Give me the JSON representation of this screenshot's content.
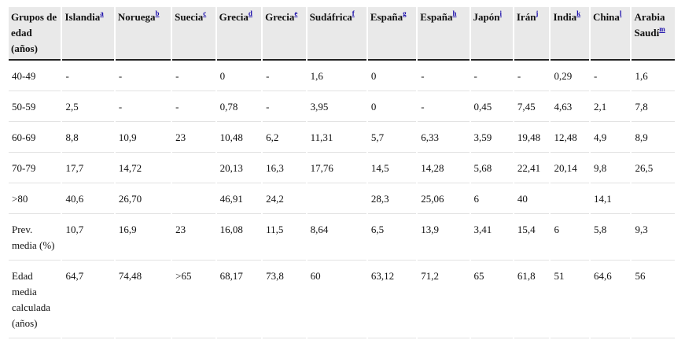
{
  "table": {
    "headers": [
      {
        "text": "Grupos de edad (años)",
        "note": ""
      },
      {
        "text": "Islandia",
        "note": "a"
      },
      {
        "text": "Noruega",
        "note": "b"
      },
      {
        "text": "Suecia",
        "note": "c"
      },
      {
        "text": "Grecia",
        "note": "d"
      },
      {
        "text": "Grecia",
        "note": "e"
      },
      {
        "text": "Sudáfrica",
        "note": "f"
      },
      {
        "text": "España",
        "note": "g"
      },
      {
        "text": "España",
        "note": "h"
      },
      {
        "text": "Japón",
        "note": "i"
      },
      {
        "text": "Irán",
        "note": "j"
      },
      {
        "text": "India",
        "note": "k"
      },
      {
        "text": "China",
        "note": "l"
      },
      {
        "text": "Arabia Saudí",
        "note": "m"
      }
    ],
    "rows": [
      [
        "40-49",
        "-",
        "-",
        "-",
        "0",
        "-",
        "1,6",
        "0",
        "-",
        "-",
        "-",
        "0,29",
        "-",
        "1,6"
      ],
      [
        "50-59",
        "2,5",
        "-",
        "-",
        "0,78",
        "-",
        "3,95",
        "0",
        "-",
        "0,45",
        "7,45",
        "4,63",
        "2,1",
        "7,8"
      ],
      [
        "60-69",
        "8,8",
        "10,9",
        "23",
        "10,48",
        "6,2",
        "11,31",
        "5,7",
        "6,33",
        "3,59",
        "19,48",
        "12,48",
        "4,9",
        "8,9"
      ],
      [
        "70-79",
        "17,7",
        "14,72",
        "",
        "20,13",
        "16,3",
        "17,76",
        "14,5",
        "14,28",
        "5,68",
        "22,41",
        "20,14",
        "9,8",
        "26,5"
      ],
      [
        ">80",
        "40,6",
        "26,70",
        "",
        "46,91",
        "24,2",
        "",
        "28,3",
        "25,06",
        "6",
        "40",
        "",
        "14,1",
        ""
      ],
      [
        "Prev. media (%)",
        "10,7",
        "16,9",
        "23",
        "16,08",
        "11,5",
        "8,64",
        "6,5",
        "13,9",
        "3,41",
        "15,4",
        "6",
        "5,8",
        "9,3"
      ],
      [
        "Edad media calculada (años)",
        "64,7",
        "74,48",
        ">65",
        "68,17",
        "73,8",
        "60",
        "63,12",
        "71,2",
        "65",
        "61,8",
        "51",
        "64,6",
        "56"
      ]
    ]
  }
}
